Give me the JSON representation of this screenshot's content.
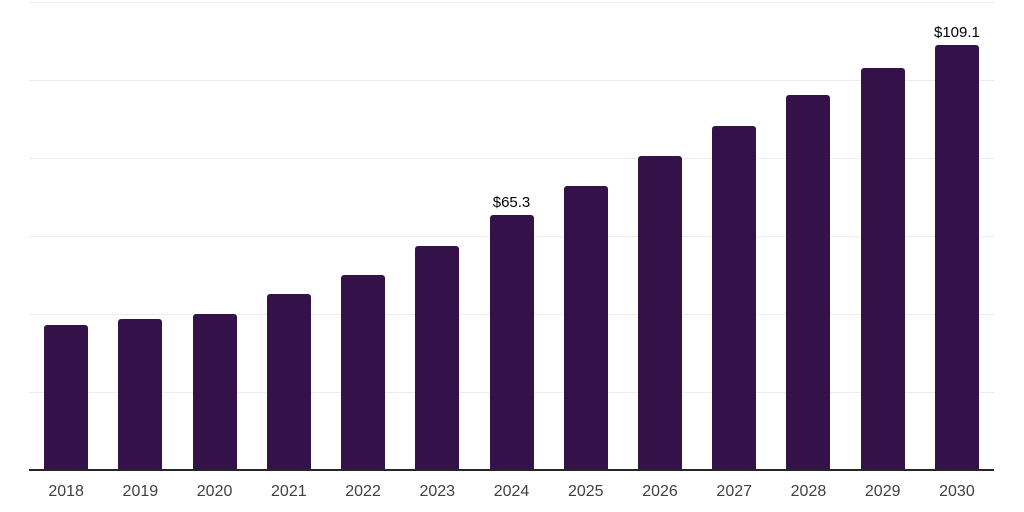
{
  "chart_data": {
    "type": "bar",
    "title": "",
    "xlabel": "",
    "ylabel": "",
    "categories": [
      "2018",
      "2019",
      "2020",
      "2021",
      "2022",
      "2023",
      "2024",
      "2025",
      "2026",
      "2027",
      "2028",
      "2029",
      "2030"
    ],
    "values": [
      37.1,
      38.6,
      39.9,
      45.2,
      50.1,
      57.5,
      65.3,
      72.8,
      80.5,
      88.2,
      96.1,
      103.0,
      109.1
    ],
    "data_labels": {
      "2024": "$65.3",
      "2030": "$109.1"
    },
    "ylim": [
      0,
      120
    ],
    "grid_step": 20,
    "grid": "horizontal-only",
    "legend": "none",
    "y_tick_labels_visible": false,
    "colors": {
      "bar": "#351149",
      "gridline": "#ededed",
      "axis_line": "#262626",
      "tick_label": "#404040",
      "data_label": "#000000",
      "background": "#ffffff"
    }
  }
}
